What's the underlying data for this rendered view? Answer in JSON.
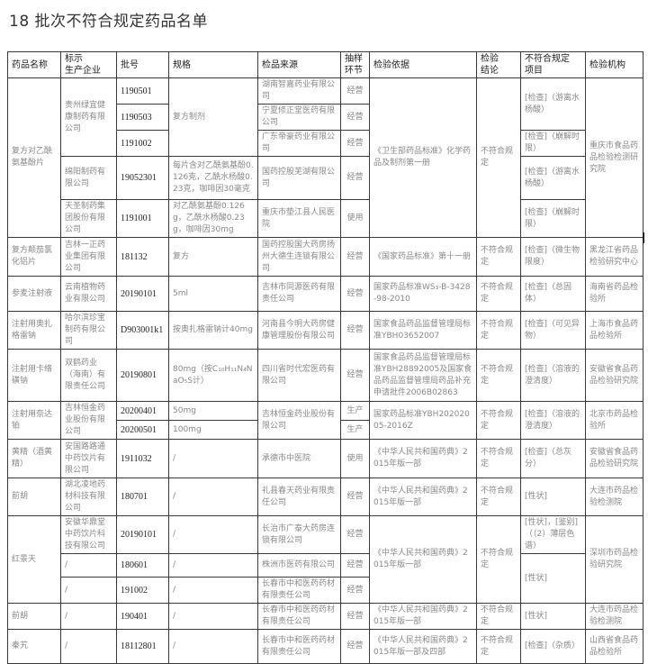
{
  "title": "18 批次不符合规定药品名单",
  "table": {
    "headers": [
      "药品名称",
      "标示\n生产企业",
      "批号",
      "规格",
      "检品来源",
      "抽样\n环节",
      "检验依据",
      "检验\n结论",
      "不符合规定\n项目",
      "检验机构"
    ],
    "rows": [
      [
        {
          "t": "复方对乙酰氨基酚片",
          "rs": 5,
          "c": 0
        },
        {
          "t": "贵州绿宜健康制药有限公司",
          "rs": 3,
          "c": 1
        },
        {
          "t": "1190501",
          "c": 2
        },
        {
          "t": "复方制剂",
          "rs": 3,
          "c": 3
        },
        {
          "t": "湖南智嘉药业有限公司",
          "c": 4
        },
        {
          "t": "经营",
          "c": 5
        },
        {
          "t": "《卫生部药品标准》化学药品及制剂第一册",
          "rs": 5,
          "c": 6
        },
        {
          "t": "不符合规定",
          "rs": 5,
          "c": 7
        },
        {
          "t": "[检查]（游离水杨酸）",
          "rs": 2,
          "c": 8
        },
        {
          "t": "重庆市食品药品检验检测研究院",
          "rs": 5,
          "c": 9
        }
      ],
      [
        {
          "t": "1190503",
          "c": 2
        },
        {
          "t": "宁夏修正堂医药有限公司",
          "c": 4
        },
        {
          "t": "经营",
          "c": 5
        }
      ],
      [
        {
          "t": "1191002",
          "c": 2
        },
        {
          "t": "广东帝豪药业有限公司",
          "c": 4
        },
        {
          "t": "经营",
          "c": 5
        },
        {
          "t": "[检查]（崩解时限）",
          "c": 8
        }
      ],
      [
        {
          "t": "绵阳制药有限公司",
          "c": 1
        },
        {
          "t": "19052301",
          "c": 2
        },
        {
          "t": "每片含对乙酰氨基酚0.126克，乙酰水杨酸0.23克，咖啡因30毫克",
          "c": 3
        },
        {
          "t": "国药控股芜湖有限公司",
          "c": 4
        },
        {
          "t": "经营",
          "c": 5
        },
        {
          "t": "[检查]（游离水杨酸）",
          "c": 8
        }
      ],
      [
        {
          "t": "天圣制药集团股份有限公司",
          "c": 1
        },
        {
          "t": "1191001",
          "c": 2
        },
        {
          "t": "对乙酰氨基酚0.126g，乙酰水杨酸0.23g，咖啡因30mg",
          "c": 3
        },
        {
          "t": "重庆市垫江县人民医院",
          "c": 4
        },
        {
          "t": "使用",
          "c": 5
        },
        {
          "t": "[检查]（崩解时限）",
          "c": 8
        }
      ],
      [
        {
          "t": "复方颠茄氯化铝片",
          "c": 0
        },
        {
          "t": "吉林一正药业集团有限公司",
          "c": 1
        },
        {
          "t": "181132",
          "c": 2
        },
        {
          "t": "复方",
          "c": 3
        },
        {
          "t": "国药控股国大药房扬州大德生连锁有限公司",
          "c": 4
        },
        {
          "t": "经营",
          "c": 5
        },
        {
          "t": "《国家药品标准》第十一册",
          "c": 6
        },
        {
          "t": "不符合规定",
          "c": 7
        },
        {
          "t": "[检查]（微生物限度）",
          "c": 8
        },
        {
          "t": "黑龙江省药品检验研究中心",
          "c": 9
        }
      ],
      [
        {
          "t": "参麦注射液",
          "c": 0
        },
        {
          "t": "云南植物药业有限公司",
          "c": 1
        },
        {
          "t": "20190101",
          "c": 2
        },
        {
          "t": "5ml",
          "c": 3
        },
        {
          "t": "吉林市同源医药有限责任公司",
          "c": 4
        },
        {
          "t": "经营",
          "c": 5
        },
        {
          "t": "国家药品标准WS₃-B-3428-98-2010",
          "c": 6
        },
        {
          "t": "不符合规定",
          "c": 7
        },
        {
          "t": "[检查]（总固体）",
          "c": 8
        },
        {
          "t": "海南省药品检验所",
          "c": 9
        }
      ],
      [
        {
          "t": "注射用奥扎格雷钠",
          "c": 0
        },
        {
          "t": "哈尔滨珍宝制药有限公司",
          "c": 1
        },
        {
          "t": "D903001k1",
          "c": 2
        },
        {
          "t": "按奥扎格雷钠计40mg",
          "c": 3
        },
        {
          "t": "河南县今明大药房健康管理股份有限公司",
          "c": 4
        },
        {
          "t": "经营",
          "c": 5
        },
        {
          "t": "国家食品药品监督管理局标准YBH03652007",
          "c": 6
        },
        {
          "t": "不符合规定",
          "c": 7
        },
        {
          "t": "[检查]（可见异物）",
          "c": 8
        },
        {
          "t": "上海市食品药品检验所",
          "c": 9
        }
      ],
      [
        {
          "t": "注射用卡络磺钠",
          "c": 0
        },
        {
          "t": "双鹤药业（海南）有限责任公司",
          "c": 1
        },
        {
          "t": "20190801",
          "c": 2
        },
        {
          "t": "80mg（按C₁₀H₁₁N₄NaO₅S计）",
          "c": 3
        },
        {
          "t": "四川省时代宏医药有限公司",
          "c": 4
        },
        {
          "t": "经营",
          "c": 5
        },
        {
          "t": "国家食品药品监督管理局标准YBH28892005及国家食品药品监督管理局药品补充申请批件2006B02863",
          "c": 6
        },
        {
          "t": "不符合规定",
          "c": 7
        },
        {
          "t": "[检查]（溶液的澄清度）",
          "c": 8
        },
        {
          "t": "安徽省食品药品检验研究院",
          "c": 9
        }
      ],
      [
        {
          "t": "注射用奈达铂",
          "rs": 2,
          "c": 0
        },
        {
          "t": "吉林恒金药业股份有限公司",
          "rs": 2,
          "c": 1
        },
        {
          "t": "20200401",
          "c": 2
        },
        {
          "t": "50mg",
          "c": 3
        },
        {
          "t": "吉林恒金药业股份有限公司",
          "rs": 2,
          "c": 4
        },
        {
          "t": "生产",
          "c": 5
        },
        {
          "t": "国家药品标准YBH20202005-2016Z",
          "rs": 2,
          "c": 6
        },
        {
          "t": "不符合规定",
          "rs": 2,
          "c": 7
        },
        {
          "t": "[检查]（溶液的澄清度）",
          "rs": 2,
          "c": 8
        },
        {
          "t": "北京市药品检验所",
          "rs": 2,
          "c": 9
        }
      ],
      [
        {
          "t": "20200501",
          "c": 2
        },
        {
          "t": "100mg",
          "c": 3
        },
        {
          "t": "生产",
          "c": 5
        }
      ],
      [
        {
          "t": "黄精（酒黄精）",
          "c": 0
        },
        {
          "t": "安国路路通中药饮片有限公司",
          "c": 1
        },
        {
          "t": "1911032",
          "c": 2
        },
        {
          "t": "/",
          "c": 3
        },
        {
          "t": "承德市中医院",
          "c": 4
        },
        {
          "t": "使用",
          "c": 5
        },
        {
          "t": "《中华人民共和国药典》2015年版一部",
          "c": 6
        },
        {
          "t": "不符合规定",
          "c": 7
        },
        {
          "t": "[检查]（总灰分）",
          "c": 8
        },
        {
          "t": "安徽省食品药品检验研究院",
          "c": 9
        }
      ],
      [
        {
          "t": "前胡",
          "c": 0
        },
        {
          "t": "湖北凌地药材科技有限公司",
          "c": 1
        },
        {
          "t": "180701",
          "c": 2
        },
        {
          "t": "/",
          "c": 3
        },
        {
          "t": "礼县春天药业有限责任公司",
          "c": 4
        },
        {
          "t": "经营",
          "c": 5
        },
        {
          "t": "《中华人民共和国药典》2015年版一部",
          "c": 6
        },
        {
          "t": "不符合规定",
          "c": 7
        },
        {
          "t": "[性状]",
          "c": 8
        },
        {
          "t": "大连市药品检验检测院",
          "c": 9
        }
      ],
      [
        {
          "t": "红景天",
          "rs": 3,
          "c": 0
        },
        {
          "t": "安徽华鼎堂中药饮片科技有限公司",
          "c": 1
        },
        {
          "t": "20190101",
          "c": 2
        },
        {
          "t": "/",
          "c": 3
        },
        {
          "t": "长治市广泰大药房连锁有限公司",
          "c": 4
        },
        {
          "t": "经营",
          "c": 5
        },
        {
          "t": "《中华人民共和国药典》2015年版一部",
          "rs": 3,
          "c": 6
        },
        {
          "t": "不符合规定",
          "rs": 3,
          "c": 7
        },
        {
          "t": "[性状]，[鉴别]（（2）薄层色谱）",
          "c": 8
        },
        {
          "t": "深圳市药品检验研究院",
          "rs": 3,
          "c": 9
        }
      ],
      [
        {
          "t": "/",
          "c": 1
        },
        {
          "t": "180601",
          "c": 2
        },
        {
          "t": "/",
          "c": 3
        },
        {
          "t": "株洲市医药有限公司",
          "c": 4
        },
        {
          "t": "经营",
          "c": 5
        },
        {
          "t": "[性状]",
          "rs": 2,
          "c": 8
        }
      ],
      [
        {
          "t": "/",
          "c": 1
        },
        {
          "t": "191002",
          "c": 2
        },
        {
          "t": "/",
          "c": 3
        },
        {
          "t": "长春市中和医药药材有限责任公司",
          "c": 4
        },
        {
          "t": "经营",
          "c": 5
        }
      ],
      [
        {
          "t": "前胡",
          "c": 0
        },
        {
          "t": "/",
          "c": 1
        },
        {
          "t": "190401",
          "c": 2
        },
        {
          "t": "/",
          "c": 3
        },
        {
          "t": "长春市中和医药药材有限责任公司",
          "c": 4
        },
        {
          "t": "经营",
          "c": 5
        },
        {
          "t": "《中华人民共和国药典》2015年版一部",
          "c": 6
        },
        {
          "t": "不符合规定",
          "c": 7
        },
        {
          "t": "[性状]",
          "c": 8
        },
        {
          "t": "大连市药品检验检测院",
          "c": 9
        }
      ],
      [
        {
          "t": "秦艽",
          "c": 0
        },
        {
          "t": "/",
          "c": 1
        },
        {
          "t": "18112801",
          "c": 2
        },
        {
          "t": "/",
          "c": 3
        },
        {
          "t": "长春市中和医药药材有限责任公司",
          "c": 4
        },
        {
          "t": "经营",
          "c": 5
        },
        {
          "t": "《中华人民共和国药典》2015年版一部及四部",
          "c": 6
        },
        {
          "t": "不符合规定",
          "c": 7
        },
        {
          "t": "[检查]（杂质）",
          "c": 8
        },
        {
          "t": "山西省食品药品检验所",
          "c": 9
        }
      ]
    ]
  }
}
